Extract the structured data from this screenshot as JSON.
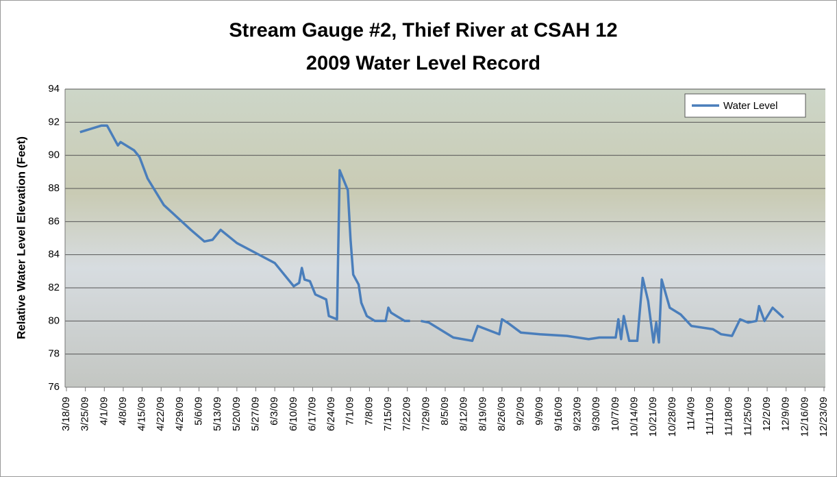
{
  "chart_data": {
    "type": "line",
    "title": "Stream Gauge #2, Thief River at CSAH 12",
    "subtitle": "2009 Water Level Record",
    "y_label": "Relative Water Level Elevation (Feet)",
    "ylim": [
      76,
      94
    ],
    "yticks": [
      76,
      78,
      80,
      82,
      84,
      86,
      88,
      90,
      92,
      94
    ],
    "xlim": [
      "3/18/09",
      "12/23/09"
    ],
    "xticks": [
      "3/18/09",
      "3/25/09",
      "4/1/09",
      "4/8/09",
      "4/15/09",
      "4/22/09",
      "4/29/09",
      "5/6/09",
      "5/13/09",
      "5/20/09",
      "5/27/09",
      "6/3/09",
      "6/10/09",
      "6/17/09",
      "6/24/09",
      "7/1/09",
      "7/8/09",
      "7/15/09",
      "7/22/09",
      "7/29/09",
      "8/5/09",
      "8/12/09",
      "8/19/09",
      "8/26/09",
      "9/2/09",
      "9/9/09",
      "9/16/09",
      "9/23/09",
      "9/30/09",
      "10/7/09",
      "10/14/09",
      "10/21/09",
      "10/28/09",
      "11/4/09",
      "11/11/09",
      "11/18/09",
      "11/25/09",
      "12/2/09",
      "12/9/09",
      "12/16/09",
      "12/23/09"
    ],
    "grid": true,
    "legend": "top-right",
    "x": [
      "3/23/09",
      "3/31/09",
      "4/2/09",
      "4/6/09",
      "4/7/09",
      "4/12/09",
      "4/14/09",
      "4/17/09",
      "4/23/09",
      "5/3/09",
      "5/8/09",
      "5/11/09",
      "5/14/09",
      "5/20/09",
      "6/3/09",
      "6/10/09",
      "6/12/09",
      "6/13/09",
      "6/14/09",
      "6/16/09",
      "6/18/09",
      "6/22/09",
      "6/23/09",
      "6/26/09",
      "6/27/09",
      "6/30/09",
      "7/1/09",
      "7/2/09",
      "7/4/09",
      "7/5/09",
      "7/7/09",
      "7/10/09",
      "7/14/09",
      "7/15/09",
      "7/16/09",
      "7/18/09",
      "7/21/09",
      "7/23/09",
      "7/25/09",
      "7/27/09",
      "7/30/09",
      "8/8/09",
      "8/15/09",
      "8/17/09",
      "8/25/09",
      "8/26/09",
      "8/28/09",
      "9/2/09",
      "9/9/09",
      "9/19/09",
      "9/27/09",
      "10/1/09",
      "10/7/09",
      "10/8/09",
      "10/9/09",
      "10/10/09",
      "10/12/09",
      "10/15/09",
      "10/17/09",
      "10/19/09",
      "10/21/09",
      "10/22/09",
      "10/23/09",
      "10/24/09",
      "10/27/09",
      "10/31/09",
      "11/4/09",
      "11/12/09",
      "11/15/09",
      "11/19/09",
      "11/22/09",
      "11/25/09",
      "11/28/09",
      "11/29/09",
      "12/1/09",
      "12/4/09",
      "12/8/09"
    ],
    "series": [
      {
        "name": "Water Level",
        "color": "#4a7ebb",
        "values": [
          91.4,
          91.8,
          91.8,
          90.6,
          90.8,
          90.3,
          89.9,
          88.6,
          87,
          85.5,
          84.8,
          84.9,
          85.5,
          84.7,
          83.5,
          82.1,
          82.3,
          83.2,
          82.5,
          82.4,
          81.6,
          81.3,
          80.3,
          80.1,
          89.1,
          87.9,
          84.9,
          82.8,
          82.2,
          81.1,
          80.3,
          80,
          80,
          80.8,
          80.5,
          80.3,
          80,
          80,
          null,
          80,
          79.9,
          79,
          78.8,
          79.7,
          79.2,
          80.1,
          79.9,
          79.3,
          79.2,
          79.1,
          78.9,
          79,
          79,
          80.1,
          78.9,
          80.3,
          78.8,
          78.8,
          82.6,
          81.2,
          78.7,
          79.9,
          78.7,
          82.5,
          80.8,
          80.4,
          79.7,
          79.5,
          79.2,
          79.1,
          80.1,
          79.9,
          80,
          80.9,
          80,
          80.8,
          80.2
        ]
      }
    ]
  }
}
